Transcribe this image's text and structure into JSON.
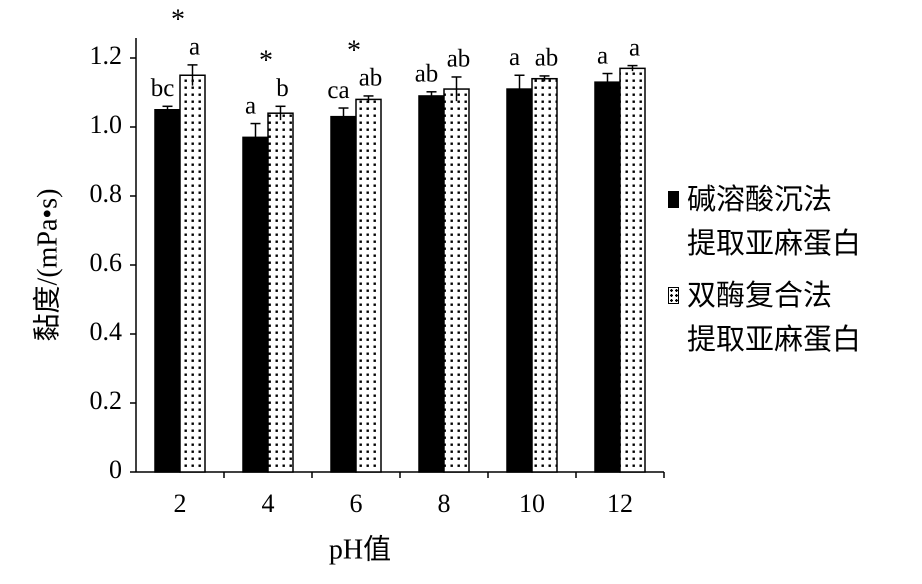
{
  "chart_data": {
    "type": "bar",
    "x_label": "pH值",
    "y_label": "黏度/(mPa•s)",
    "categories": [
      "2",
      "4",
      "6",
      "8",
      "10",
      "12"
    ],
    "series": [
      {
        "name": "碱溶酸沉法\n提取亚麻蛋白",
        "color": "#000000",
        "values": [
          1.05,
          0.97,
          1.03,
          1.09,
          1.11,
          1.13
        ],
        "errors": [
          0.01,
          0.04,
          0.025,
          0.012,
          0.04,
          0.025
        ],
        "letters": [
          "bc",
          "a",
          "ca",
          "ab",
          "a",
          "a"
        ]
      },
      {
        "name": "双酶复合法\n提取亚麻蛋白",
        "color": "#000000",
        "pattern": "dots",
        "values": [
          1.15,
          1.04,
          1.08,
          1.11,
          1.14,
          1.17
        ],
        "errors": [
          0.03,
          0.02,
          0.01,
          0.035,
          0.008,
          0.008
        ],
        "letters": [
          "a",
          "b",
          "ab",
          "ab",
          "ab",
          "a"
        ]
      }
    ],
    "significance": [
      "*",
      "*",
      "*",
      null,
      null,
      null
    ],
    "ylim": [
      0,
      1.2
    ],
    "yticks": [
      0,
      0.2,
      0.4,
      0.6,
      0.8,
      {
        "value": 1,
        "label": "1.0"
      },
      1.2
    ],
    "grid": false
  }
}
